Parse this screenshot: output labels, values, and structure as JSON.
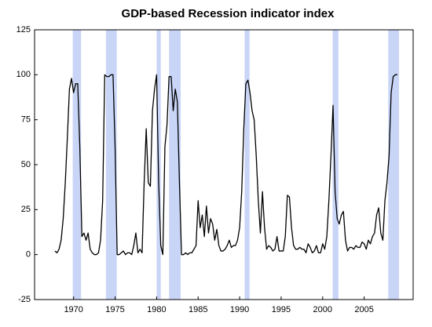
{
  "chart_data": {
    "type": "line",
    "title": "GDP-based Recession indicator index",
    "xlim": [
      1965.3,
      2010.9
    ],
    "xticks": [
      1970,
      1975,
      1980,
      1985,
      1990,
      1995,
      2000,
      2005
    ],
    "ylim": [
      -25,
      125
    ],
    "yticks": [
      -25,
      0,
      25,
      50,
      75,
      100,
      125
    ],
    "grid": false,
    "shade_color": "#c9d5f7",
    "shaded_periods": [
      [
        1969.9,
        1970.9
      ],
      [
        1973.9,
        1975.2
      ],
      [
        1980.0,
        1980.5
      ],
      [
        1981.5,
        1982.9
      ],
      [
        1990.6,
        1991.2
      ],
      [
        2001.2,
        2001.9
      ],
      [
        2007.9,
        2009.2
      ]
    ],
    "x": [
      1967.75,
      1968,
      1968.25,
      1968.5,
      1968.75,
      1969,
      1969.25,
      1969.5,
      1969.75,
      1970,
      1970.25,
      1970.5,
      1970.75,
      1971,
      1971.25,
      1971.5,
      1971.75,
      1972,
      1972.25,
      1972.5,
      1972.75,
      1973,
      1973.25,
      1973.5,
      1973.75,
      1974,
      1974.25,
      1974.5,
      1974.75,
      1975,
      1975.25,
      1975.5,
      1975.75,
      1976,
      1976.25,
      1976.5,
      1976.75,
      1977,
      1977.25,
      1977.5,
      1977.75,
      1978,
      1978.25,
      1978.5,
      1978.75,
      1979,
      1979.25,
      1979.5,
      1979.75,
      1980,
      1980.25,
      1980.5,
      1980.75,
      1981,
      1981.25,
      1981.5,
      1981.75,
      1982,
      1982.25,
      1982.5,
      1982.75,
      1983,
      1983.25,
      1983.5,
      1983.75,
      1984,
      1984.25,
      1984.75,
      1985,
      1985.25,
      1985.5,
      1985.75,
      1986,
      1986.25,
      1986.5,
      1986.75,
      1987,
      1987.25,
      1987.5,
      1987.75,
      1988,
      1988.25,
      1988.5,
      1988.75,
      1989,
      1989.25,
      1989.5,
      1989.75,
      1990,
      1990.25,
      1990.5,
      1990.75,
      1991,
      1991.25,
      1991.5,
      1991.75,
      1992,
      1992.25,
      1992.5,
      1992.75,
      1993,
      1993.25,
      1993.5,
      1993.75,
      1994,
      1994.25,
      1994.5,
      1994.75,
      1995,
      1995.25,
      1995.5,
      1995.75,
      1996,
      1996.25,
      1996.5,
      1996.75,
      1997,
      1997.25,
      1997.5,
      1997.75,
      1998,
      1998.25,
      1998.5,
      1998.75,
      1999,
      1999.25,
      1999.5,
      1999.75,
      2000,
      2000.25,
      2000.5,
      2000.75,
      2001,
      2001.25,
      2001.5,
      2001.75,
      2002,
      2002.25,
      2002.5,
      2002.75,
      2003,
      2003.25,
      2003.5,
      2003.75,
      2004,
      2004.25,
      2004.5,
      2004.75,
      2005,
      2005.25,
      2005.5,
      2005.75,
      2006,
      2006.25,
      2006.5,
      2006.75,
      2007,
      2007.25,
      2007.5,
      2007.75,
      2008,
      2008.25,
      2008.5,
      2008.75,
      2009
    ],
    "series": [
      {
        "color": "#000000",
        "values": [
          2,
          1,
          3,
          8,
          20,
          40,
          65,
          92,
          98,
          90,
          95,
          95,
          60,
          10,
          12,
          8,
          12,
          3,
          1,
          0,
          0,
          1,
          8,
          30,
          100,
          99,
          99,
          100,
          100,
          60,
          0,
          0,
          1,
          2,
          0,
          1,
          1,
          0,
          5,
          12,
          1,
          3,
          1,
          40,
          70,
          40,
          38,
          80,
          92,
          100,
          40,
          5,
          0,
          60,
          72,
          99,
          99,
          80,
          92,
          85,
          40,
          0,
          0,
          1,
          0,
          1,
          1,
          5,
          30,
          15,
          22,
          10,
          27,
          12,
          20,
          17,
          8,
          14,
          5,
          2,
          2,
          3,
          5,
          8,
          4,
          5,
          5,
          8,
          15,
          35,
          70,
          95,
          97,
          90,
          80,
          75,
          55,
          30,
          12,
          35,
          15,
          3,
          5,
          4,
          2,
          3,
          10,
          2,
          2,
          2,
          10,
          33,
          32,
          15,
          5,
          3,
          3,
          4,
          3,
          3,
          1,
          6,
          4,
          1,
          2,
          5,
          1,
          1,
          6,
          3,
          10,
          30,
          55,
          83,
          35,
          20,
          17,
          22,
          24,
          8,
          2,
          4,
          4,
          3,
          5,
          4,
          4,
          7,
          6,
          3,
          8,
          6,
          10,
          12,
          22,
          26,
          12,
          8,
          30,
          40,
          55,
          90,
          99,
          100,
          100
        ]
      }
    ]
  }
}
